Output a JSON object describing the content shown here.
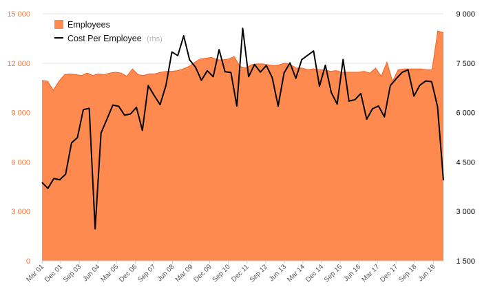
{
  "chart_data": {
    "type": "area",
    "x_tick_labels": [
      "Mar 01",
      "Dec 01",
      "Sep 03",
      "Jun 04",
      "Mar 05",
      "Dec 06",
      "Sep 07",
      "Jun 08",
      "Mar 09",
      "Dec 09",
      "Sep 10",
      "Dec 11",
      "Sep 12",
      "Jun 13",
      "Mar 14",
      "Dec 14",
      "Sep 15",
      "Jun 16",
      "Mar 17",
      "Dec 17",
      "Sep 18",
      "Jun 19"
    ],
    "y_left": {
      "ticks": [
        0,
        3000,
        6000,
        9000,
        12000,
        15000
      ],
      "tick_labels": [
        "0",
        "3 000",
        "6 000",
        "9 000",
        "12 000",
        "15 000"
      ],
      "ylim": [
        0,
        15000
      ]
    },
    "y_right": {
      "ticks": [
        1500,
        3000,
        4500,
        6000,
        7500,
        9000
      ],
      "tick_labels": [
        "1 500",
        "3 000",
        "4 500",
        "6 000",
        "7 500",
        "9 000"
      ],
      "ylim": [
        1500,
        9000
      ]
    },
    "grid": true,
    "legend_position": "top-left",
    "series": [
      {
        "name": "Employees",
        "type": "area",
        "axis": "left",
        "color": "#ff8a50",
        "edge_color": "#f26a2a",
        "values": [
          10950,
          10900,
          10350,
          10900,
          11300,
          11350,
          11300,
          11250,
          11400,
          11250,
          11350,
          11300,
          11400,
          11450,
          11400,
          11200,
          11650,
          11300,
          11250,
          11350,
          11350,
          11450,
          11500,
          11500,
          11550,
          11650,
          11800,
          12050,
          12250,
          12300,
          12350,
          12200,
          12200,
          12250,
          12400,
          11800,
          11700,
          11900,
          11950,
          11950,
          11900,
          11850,
          11900,
          12000,
          11900,
          11700,
          11700,
          11600,
          11650,
          11600,
          11600,
          11500,
          11550,
          11450,
          11450,
          11450,
          11450,
          11500,
          11400,
          11700,
          11200,
          12050,
          10900,
          11600,
          11650,
          11650,
          11650,
          11650,
          11600,
          11600,
          13950,
          13850
        ]
      },
      {
        "name": "Cost Per Employee",
        "note": "(rhs)",
        "type": "line",
        "axis": "right",
        "color": "#000000",
        "values": [
          3880,
          3700,
          4000,
          3960,
          4130,
          5080,
          5240,
          6090,
          6130,
          2470,
          5380,
          5800,
          6230,
          6190,
          5920,
          5960,
          6160,
          5460,
          6820,
          6520,
          6240,
          6830,
          7840,
          7730,
          8330,
          7600,
          7380,
          6980,
          7270,
          7090,
          7910,
          7240,
          7220,
          6200,
          8560,
          7090,
          7460,
          7230,
          7430,
          7060,
          6200,
          7200,
          7510,
          7040,
          7610,
          7740,
          7870,
          6800,
          7440,
          6610,
          6260,
          7610,
          6350,
          6390,
          6580,
          5800,
          6120,
          6200,
          5870,
          6820,
          7030,
          7220,
          7300,
          6500,
          6830,
          6960,
          6940,
          6180,
          3940
        ]
      }
    ]
  }
}
